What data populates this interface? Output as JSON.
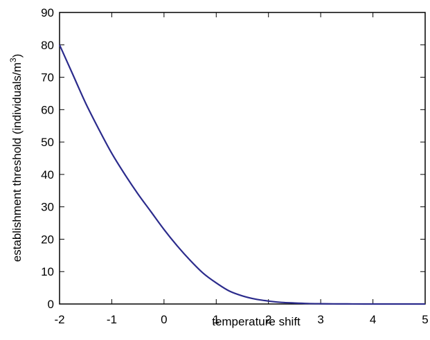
{
  "chart_data": {
    "type": "line",
    "title": "",
    "xlabel": "temperature shift",
    "ylabel_main": "establishment threshold (individuals/m",
    "ylabel_sup": "3",
    "ylabel_close": ")",
    "xlim": [
      -2,
      5
    ],
    "ylim": [
      0,
      90
    ],
    "xticks": [
      -2,
      -1,
      0,
      1,
      2,
      3,
      4,
      5
    ],
    "yticks": [
      0,
      10,
      20,
      30,
      40,
      50,
      60,
      70,
      80,
      90
    ],
    "grid": false,
    "series": [
      {
        "color": "#2b2b8c",
        "x": [
          -2.0,
          -1.75,
          -1.5,
          -1.25,
          -1.0,
          -0.75,
          -0.5,
          -0.25,
          0.0,
          0.25,
          0.5,
          0.75,
          1.0,
          1.25,
          1.5,
          1.75,
          2.0,
          2.25,
          2.5,
          2.75,
          3.0,
          3.25,
          3.5,
          4.0,
          4.5,
          5.0
        ],
        "y": [
          80.0,
          71.0,
          62.0,
          54.0,
          46.5,
          40.0,
          34.0,
          28.5,
          23.0,
          18.0,
          13.5,
          9.5,
          6.5,
          4.0,
          2.5,
          1.5,
          0.9,
          0.5,
          0.3,
          0.15,
          0.08,
          0.04,
          0.02,
          0.0,
          0.0,
          0.0
        ]
      }
    ]
  }
}
